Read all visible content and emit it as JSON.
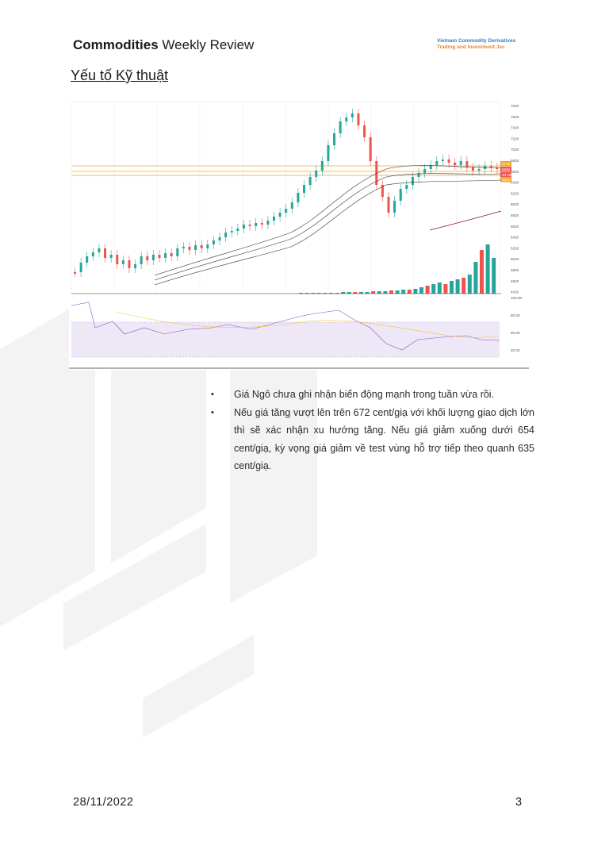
{
  "header": {
    "title_bold": "Commodities",
    "title_rest": "Weekly Review",
    "company_line1": "Vietnam Commodity Derivatives",
    "company_line2": "Trading and Investment Jsc"
  },
  "section": {
    "title": "Yếu tố Kỹ thuật"
  },
  "chart": {
    "price_ticks": [
      "7820",
      "7620",
      "7420",
      "7220",
      "7020",
      "6820",
      "6620",
      "6420",
      "6220",
      "6020",
      "5820",
      "5620",
      "5420",
      "5220",
      "5020",
      "4820",
      "4620",
      "4420"
    ],
    "price_label_top": "6710",
    "price_label_current": "6646",
    "price_label_change": "4d 19h",
    "price_label_low": "6540",
    "rsi_ticks": [
      "100.00",
      "80.00",
      "60.00",
      "40.00"
    ],
    "colors": {
      "up": "#26a69a",
      "down": "#ef5350",
      "support": "#f5a623",
      "ma": "#333333",
      "rsi": "#7e57c2"
    }
  },
  "bullets": [
    "Giá Ngô chưa ghi nhận biến động mạnh trong tuần vừa rồi.",
    "Nếu giá tăng vượt lên trên 672 cent/giạ với khối lượng giao dịch lớn thì sẽ xác nhận xu hướng tăng. Nếu giá giảm xuống dưới 654 cent/giạ, kỳ vọng giá giảm về test vùng hỗ trợ tiếp theo quanh 635 cent/giạ."
  ],
  "footer": {
    "date": "28/11/2022",
    "page": "3"
  }
}
